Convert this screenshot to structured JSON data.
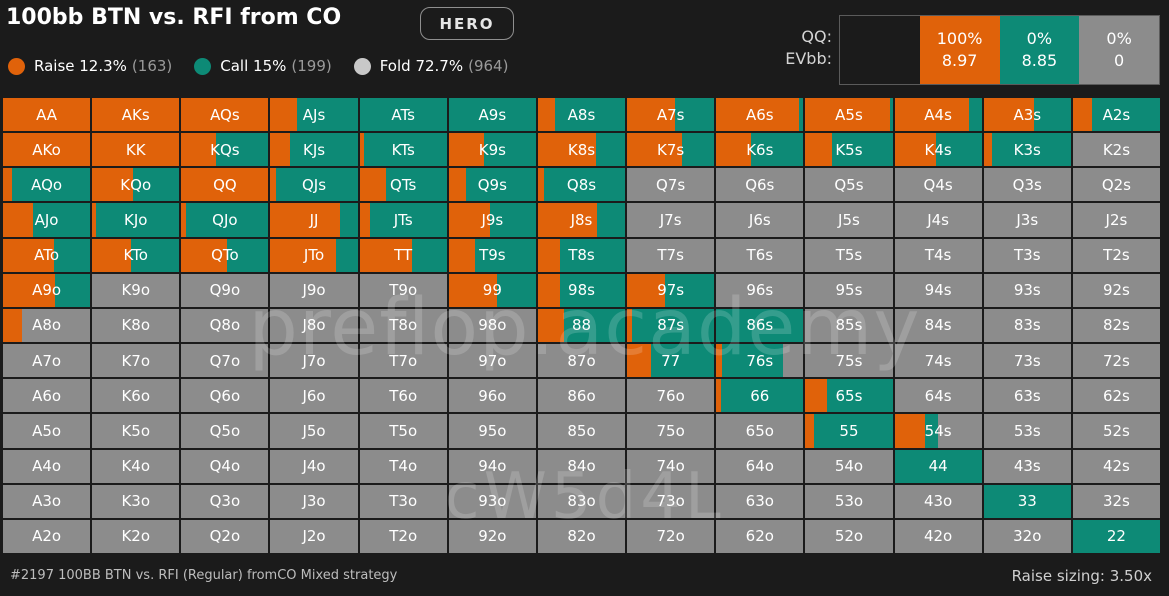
{
  "header": {
    "title": "100bb BTN vs. RFI from CO",
    "badge": "HERO"
  },
  "legend": [
    {
      "label": "Raise 12.3%",
      "count": "(163)",
      "color": "#e0620a"
    },
    {
      "label": "Call 15%",
      "count": "(199)",
      "color": "#0d8a76"
    },
    {
      "label": "Fold 72.7%",
      "count": "(964)",
      "color": "#c8c8c8"
    }
  ],
  "info": {
    "row_labels": [
      "QQ:",
      "EVbb:"
    ],
    "cells": [
      {
        "pct": "",
        "ev": "",
        "color": "#1b1b1b"
      },
      {
        "pct": "100%",
        "ev": "8.97",
        "color": "#e0620a"
      },
      {
        "pct": "0%",
        "ev": "8.85",
        "color": "#0d8a76"
      },
      {
        "pct": "0%",
        "ev": "0",
        "color": "#8c8c8c"
      }
    ]
  },
  "colors": {
    "raise": "#e0620a",
    "call": "#0d8a76",
    "fold": "#8c8c8c"
  },
  "grid": [
    [
      {
        "h": "AA",
        "r": 1,
        "c": 0
      },
      {
        "h": "AKs",
        "r": 1,
        "c": 0
      },
      {
        "h": "AQs",
        "r": 1,
        "c": 0
      },
      {
        "h": "AJs",
        "r": 0.3,
        "c": 0.7
      },
      {
        "h": "ATs",
        "r": 0,
        "c": 1
      },
      {
        "h": "A9s",
        "r": 0,
        "c": 1
      },
      {
        "h": "A8s",
        "r": 0.2,
        "c": 0.8
      },
      {
        "h": "A7s",
        "r": 0.55,
        "c": 0.45
      },
      {
        "h": "A6s",
        "r": 0.95,
        "c": 0.05
      },
      {
        "h": "A5s",
        "r": 0.97,
        "c": 0.03
      },
      {
        "h": "A4s",
        "r": 0.85,
        "c": 0.15
      },
      {
        "h": "A3s",
        "r": 0.58,
        "c": 0.42
      },
      {
        "h": "A2s",
        "r": 0.22,
        "c": 0.78
      }
    ],
    [
      {
        "h": "AKo",
        "r": 1,
        "c": 0
      },
      {
        "h": "KK",
        "r": 1,
        "c": 0
      },
      {
        "h": "KQs",
        "r": 0.4,
        "c": 0.6
      },
      {
        "h": "KJs",
        "r": 0.23,
        "c": 0.77
      },
      {
        "h": "KTs",
        "r": 0.05,
        "c": 0.95
      },
      {
        "h": "K9s",
        "r": 0.4,
        "c": 0.6
      },
      {
        "h": "K8s",
        "r": 0.67,
        "c": 0.33
      },
      {
        "h": "K7s",
        "r": 0.63,
        "c": 0.37
      },
      {
        "h": "K6s",
        "r": 0.4,
        "c": 0.6
      },
      {
        "h": "K5s",
        "r": 0.3,
        "c": 0.7
      },
      {
        "h": "K4s",
        "r": 0.48,
        "c": 0.52
      },
      {
        "h": "K3s",
        "r": 0.1,
        "c": 0.9
      },
      {
        "h": "K2s",
        "r": 0,
        "c": 0
      }
    ],
    [
      {
        "h": "AQo",
        "r": 0.1,
        "c": 0.9
      },
      {
        "h": "KQo",
        "r": 0.47,
        "c": 0.53
      },
      {
        "h": "QQ",
        "r": 1,
        "c": 0
      },
      {
        "h": "QJs",
        "r": 0.06,
        "c": 0.94
      },
      {
        "h": "QTs",
        "r": 0.3,
        "c": 0.7
      },
      {
        "h": "Q9s",
        "r": 0.2,
        "c": 0.8
      },
      {
        "h": "Q8s",
        "r": 0.07,
        "c": 0.93
      },
      {
        "h": "Q7s",
        "r": 0,
        "c": 0
      },
      {
        "h": "Q6s",
        "r": 0,
        "c": 0
      },
      {
        "h": "Q5s",
        "r": 0,
        "c": 0
      },
      {
        "h": "Q4s",
        "r": 0,
        "c": 0
      },
      {
        "h": "Q3s",
        "r": 0,
        "c": 0
      },
      {
        "h": "Q2s",
        "r": 0,
        "c": 0
      }
    ],
    [
      {
        "h": "AJo",
        "r": 0.35,
        "c": 0.65
      },
      {
        "h": "KJo",
        "r": 0.05,
        "c": 0.95
      },
      {
        "h": "QJo",
        "r": 0.05,
        "c": 0.95
      },
      {
        "h": "JJ",
        "r": 0.8,
        "c": 0.2
      },
      {
        "h": "JTs",
        "r": 0.12,
        "c": 0.88
      },
      {
        "h": "J9s",
        "r": 0.47,
        "c": 0.53
      },
      {
        "h": "J8s",
        "r": 0.68,
        "c": 0.32
      },
      {
        "h": "J7s",
        "r": 0,
        "c": 0
      },
      {
        "h": "J6s",
        "r": 0,
        "c": 0
      },
      {
        "h": "J5s",
        "r": 0,
        "c": 0
      },
      {
        "h": "J4s",
        "r": 0,
        "c": 0
      },
      {
        "h": "J3s",
        "r": 0,
        "c": 0
      },
      {
        "h": "J2s",
        "r": 0,
        "c": 0
      }
    ],
    [
      {
        "h": "ATo",
        "r": 0.58,
        "c": 0.42
      },
      {
        "h": "KTo",
        "r": 0.45,
        "c": 0.55
      },
      {
        "h": "QTo",
        "r": 0.53,
        "c": 0.47
      },
      {
        "h": "JTo",
        "r": 0.75,
        "c": 0.25
      },
      {
        "h": "TT",
        "r": 0.6,
        "c": 0.4
      },
      {
        "h": "T9s",
        "r": 0.3,
        "c": 0.7
      },
      {
        "h": "T8s",
        "r": 0.25,
        "c": 0.75
      },
      {
        "h": "T7s",
        "r": 0,
        "c": 0
      },
      {
        "h": "T6s",
        "r": 0,
        "c": 0
      },
      {
        "h": "T5s",
        "r": 0,
        "c": 0
      },
      {
        "h": "T4s",
        "r": 0,
        "c": 0
      },
      {
        "h": "T3s",
        "r": 0,
        "c": 0
      },
      {
        "h": "T2s",
        "r": 0,
        "c": 0
      }
    ],
    [
      {
        "h": "A9o",
        "r": 0.6,
        "c": 0.4,
        "f": 0.0
      },
      {
        "h": "K9o",
        "r": 0,
        "c": 0
      },
      {
        "h": "Q9o",
        "r": 0,
        "c": 0
      },
      {
        "h": "J9o",
        "r": 0,
        "c": 0
      },
      {
        "h": "T9o",
        "r": 0,
        "c": 0
      },
      {
        "h": "99",
        "r": 0.55,
        "c": 0.45
      },
      {
        "h": "98s",
        "r": 0.25,
        "c": 0.75
      },
      {
        "h": "97s",
        "r": 0.43,
        "c": 0.57
      },
      {
        "h": "96s",
        "r": 0,
        "c": 0
      },
      {
        "h": "95s",
        "r": 0,
        "c": 0
      },
      {
        "h": "94s",
        "r": 0,
        "c": 0
      },
      {
        "h": "93s",
        "r": 0,
        "c": 0
      },
      {
        "h": "92s",
        "r": 0,
        "c": 0
      }
    ],
    [
      {
        "h": "A8o",
        "r": 0.22,
        "c": 0
      },
      {
        "h": "K8o",
        "r": 0,
        "c": 0
      },
      {
        "h": "Q8o",
        "r": 0,
        "c": 0
      },
      {
        "h": "J8o",
        "r": 0,
        "c": 0
      },
      {
        "h": "T8o",
        "r": 0,
        "c": 0
      },
      {
        "h": "98o",
        "r": 0,
        "c": 0
      },
      {
        "h": "88",
        "r": 0.3,
        "c": 0.7
      },
      {
        "h": "87s",
        "r": 0.06,
        "c": 0.94
      },
      {
        "h": "86s",
        "r": 0,
        "c": 1
      },
      {
        "h": "85s",
        "r": 0,
        "c": 0
      },
      {
        "h": "84s",
        "r": 0,
        "c": 0
      },
      {
        "h": "83s",
        "r": 0,
        "c": 0
      },
      {
        "h": "82s",
        "r": 0,
        "c": 0
      }
    ],
    [
      {
        "h": "A7o",
        "r": 0,
        "c": 0
      },
      {
        "h": "K7o",
        "r": 0,
        "c": 0
      },
      {
        "h": "Q7o",
        "r": 0,
        "c": 0
      },
      {
        "h": "J7o",
        "r": 0,
        "c": 0
      },
      {
        "h": "T7o",
        "r": 0,
        "c": 0
      },
      {
        "h": "97o",
        "r": 0,
        "c": 0
      },
      {
        "h": "87o",
        "r": 0,
        "c": 0
      },
      {
        "h": "77",
        "r": 0.27,
        "c": 0.73
      },
      {
        "h": "76s",
        "r": 0.07,
        "c": 0.7
      },
      {
        "h": "75s",
        "r": 0,
        "c": 0
      },
      {
        "h": "74s",
        "r": 0,
        "c": 0
      },
      {
        "h": "73s",
        "r": 0,
        "c": 0
      },
      {
        "h": "72s",
        "r": 0,
        "c": 0
      }
    ],
    [
      {
        "h": "A6o",
        "r": 0,
        "c": 0
      },
      {
        "h": "K6o",
        "r": 0,
        "c": 0
      },
      {
        "h": "Q6o",
        "r": 0,
        "c": 0
      },
      {
        "h": "J6o",
        "r": 0,
        "c": 0
      },
      {
        "h": "T6o",
        "r": 0,
        "c": 0
      },
      {
        "h": "96o",
        "r": 0,
        "c": 0
      },
      {
        "h": "86o",
        "r": 0,
        "c": 0
      },
      {
        "h": "76o",
        "r": 0,
        "c": 0
      },
      {
        "h": "66",
        "r": 0.05,
        "c": 0.95
      },
      {
        "h": "65s",
        "r": 0.25,
        "c": 0.75
      },
      {
        "h": "64s",
        "r": 0,
        "c": 0
      },
      {
        "h": "63s",
        "r": 0,
        "c": 0
      },
      {
        "h": "62s",
        "r": 0,
        "c": 0
      }
    ],
    [
      {
        "h": "A5o",
        "r": 0,
        "c": 0
      },
      {
        "h": "K5o",
        "r": 0,
        "c": 0
      },
      {
        "h": "Q5o",
        "r": 0,
        "c": 0
      },
      {
        "h": "J5o",
        "r": 0,
        "c": 0
      },
      {
        "h": "T5o",
        "r": 0,
        "c": 0
      },
      {
        "h": "95o",
        "r": 0,
        "c": 0
      },
      {
        "h": "85o",
        "r": 0,
        "c": 0
      },
      {
        "h": "75o",
        "r": 0,
        "c": 0
      },
      {
        "h": "65o",
        "r": 0,
        "c": 0
      },
      {
        "h": "55",
        "r": 0.1,
        "c": 0.9
      },
      {
        "h": "54s",
        "r": 0.35,
        "c": 0.15
      },
      {
        "h": "53s",
        "r": 0,
        "c": 0
      },
      {
        "h": "52s",
        "r": 0,
        "c": 0
      }
    ],
    [
      {
        "h": "A4o",
        "r": 0,
        "c": 0
      },
      {
        "h": "K4o",
        "r": 0,
        "c": 0
      },
      {
        "h": "Q4o",
        "r": 0,
        "c": 0
      },
      {
        "h": "J4o",
        "r": 0,
        "c": 0
      },
      {
        "h": "T4o",
        "r": 0,
        "c": 0
      },
      {
        "h": "94o",
        "r": 0,
        "c": 0
      },
      {
        "h": "84o",
        "r": 0,
        "c": 0
      },
      {
        "h": "74o",
        "r": 0,
        "c": 0
      },
      {
        "h": "64o",
        "r": 0,
        "c": 0
      },
      {
        "h": "54o",
        "r": 0,
        "c": 0
      },
      {
        "h": "44",
        "r": 0,
        "c": 1
      },
      {
        "h": "43s",
        "r": 0,
        "c": 0
      },
      {
        "h": "42s",
        "r": 0,
        "c": 0
      }
    ],
    [
      {
        "h": "A3o",
        "r": 0,
        "c": 0
      },
      {
        "h": "K3o",
        "r": 0,
        "c": 0
      },
      {
        "h": "Q3o",
        "r": 0,
        "c": 0
      },
      {
        "h": "J3o",
        "r": 0,
        "c": 0
      },
      {
        "h": "T3o",
        "r": 0,
        "c": 0
      },
      {
        "h": "93o",
        "r": 0,
        "c": 0
      },
      {
        "h": "83o",
        "r": 0,
        "c": 0
      },
      {
        "h": "73o",
        "r": 0,
        "c": 0
      },
      {
        "h": "63o",
        "r": 0,
        "c": 0
      },
      {
        "h": "53o",
        "r": 0,
        "c": 0
      },
      {
        "h": "43o",
        "r": 0,
        "c": 0
      },
      {
        "h": "33",
        "r": 0,
        "c": 1
      },
      {
        "h": "32s",
        "r": 0,
        "c": 0
      }
    ],
    [
      {
        "h": "A2o",
        "r": 0,
        "c": 0
      },
      {
        "h": "K2o",
        "r": 0,
        "c": 0
      },
      {
        "h": "Q2o",
        "r": 0,
        "c": 0
      },
      {
        "h": "J2o",
        "r": 0,
        "c": 0
      },
      {
        "h": "T2o",
        "r": 0,
        "c": 0
      },
      {
        "h": "92o",
        "r": 0,
        "c": 0
      },
      {
        "h": "82o",
        "r": 0,
        "c": 0
      },
      {
        "h": "72o",
        "r": 0,
        "c": 0
      },
      {
        "h": "62o",
        "r": 0,
        "c": 0
      },
      {
        "h": "52o",
        "r": 0,
        "c": 0
      },
      {
        "h": "42o",
        "r": 0,
        "c": 0
      },
      {
        "h": "32o",
        "r": 0,
        "c": 0
      },
      {
        "h": "22",
        "r": 0,
        "c": 1
      }
    ]
  ],
  "watermarks": [
    "preflop.academy",
    "cW5d4L"
  ],
  "footer": {
    "left": "#2197 100BB BTN vs. RFI (Regular) fromCO Mixed strategy",
    "right": "Raise sizing: 3.50x"
  }
}
